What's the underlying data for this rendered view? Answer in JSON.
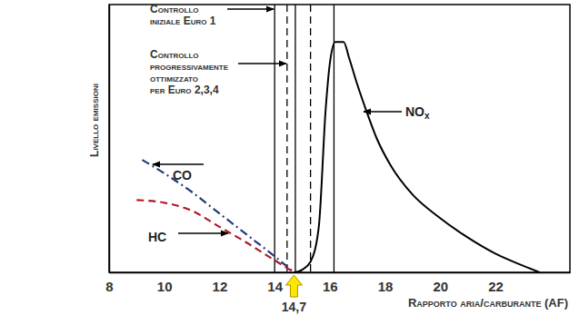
{
  "chart_data": {
    "type": "line",
    "xlabel": "Rapporto aria/carburante (AF)",
    "ylabel": "Livello emissioni",
    "xlim": [
      8,
      24.7
    ],
    "ylim": [
      0,
      100
    ],
    "xticks": [
      8,
      10,
      12,
      14,
      16,
      18,
      20,
      22
    ],
    "tick_labels": "x",
    "grid": false,
    "series": [
      {
        "name": "CO",
        "color": "#1f3c78",
        "line_style": "dashdot",
        "x": [
          9.2,
          10,
          11,
          12,
          13,
          14,
          14.7
        ],
        "values": [
          42,
          37,
          30,
          22,
          14,
          6,
          0
        ]
      },
      {
        "name": "HC",
        "color": "#b0182a",
        "line_style": "dashed",
        "x": [
          9,
          10,
          11,
          12,
          13,
          14,
          14.7
        ],
        "values": [
          27,
          26,
          23,
          17,
          11,
          4.5,
          0
        ]
      },
      {
        "name": "NOx",
        "color": "#000000",
        "line_style": "solid",
        "x": [
          14.7,
          15.0,
          15.3,
          15.6,
          15.85,
          16.0,
          16.2,
          16.5,
          16.7,
          17.0,
          17.3,
          17.7,
          18.2,
          19.0,
          19.9,
          21.0,
          22.0,
          23.0,
          23.6
        ],
        "values": [
          0,
          1,
          4,
          17,
          61,
          78,
          86,
          86,
          80,
          70,
          61,
          50,
          40,
          29,
          21,
          13,
          7,
          2.5,
          0
        ]
      }
    ],
    "vertical_lines": [
      {
        "x": 14,
        "line_style": "solid"
      },
      {
        "x": 14.45,
        "line_style": "dashed"
      },
      {
        "x": 14.75,
        "line_style": "solid"
      },
      {
        "x": 15.3,
        "line_style": "dashed"
      },
      {
        "x": 16.15,
        "line_style": "solid"
      }
    ],
    "annotations": [
      {
        "text": [
          "Controllo",
          "iniziale Euro 1"
        ],
        "x": 14
      },
      {
        "text": [
          "Controllo",
          "progressivamente",
          "ottimizzato",
          "per Euro 2,3,4"
        ],
        "x": 14.45
      }
    ],
    "highlight": {
      "value": 14.7,
      "label": "14,7",
      "color": "#ffe600"
    }
  }
}
